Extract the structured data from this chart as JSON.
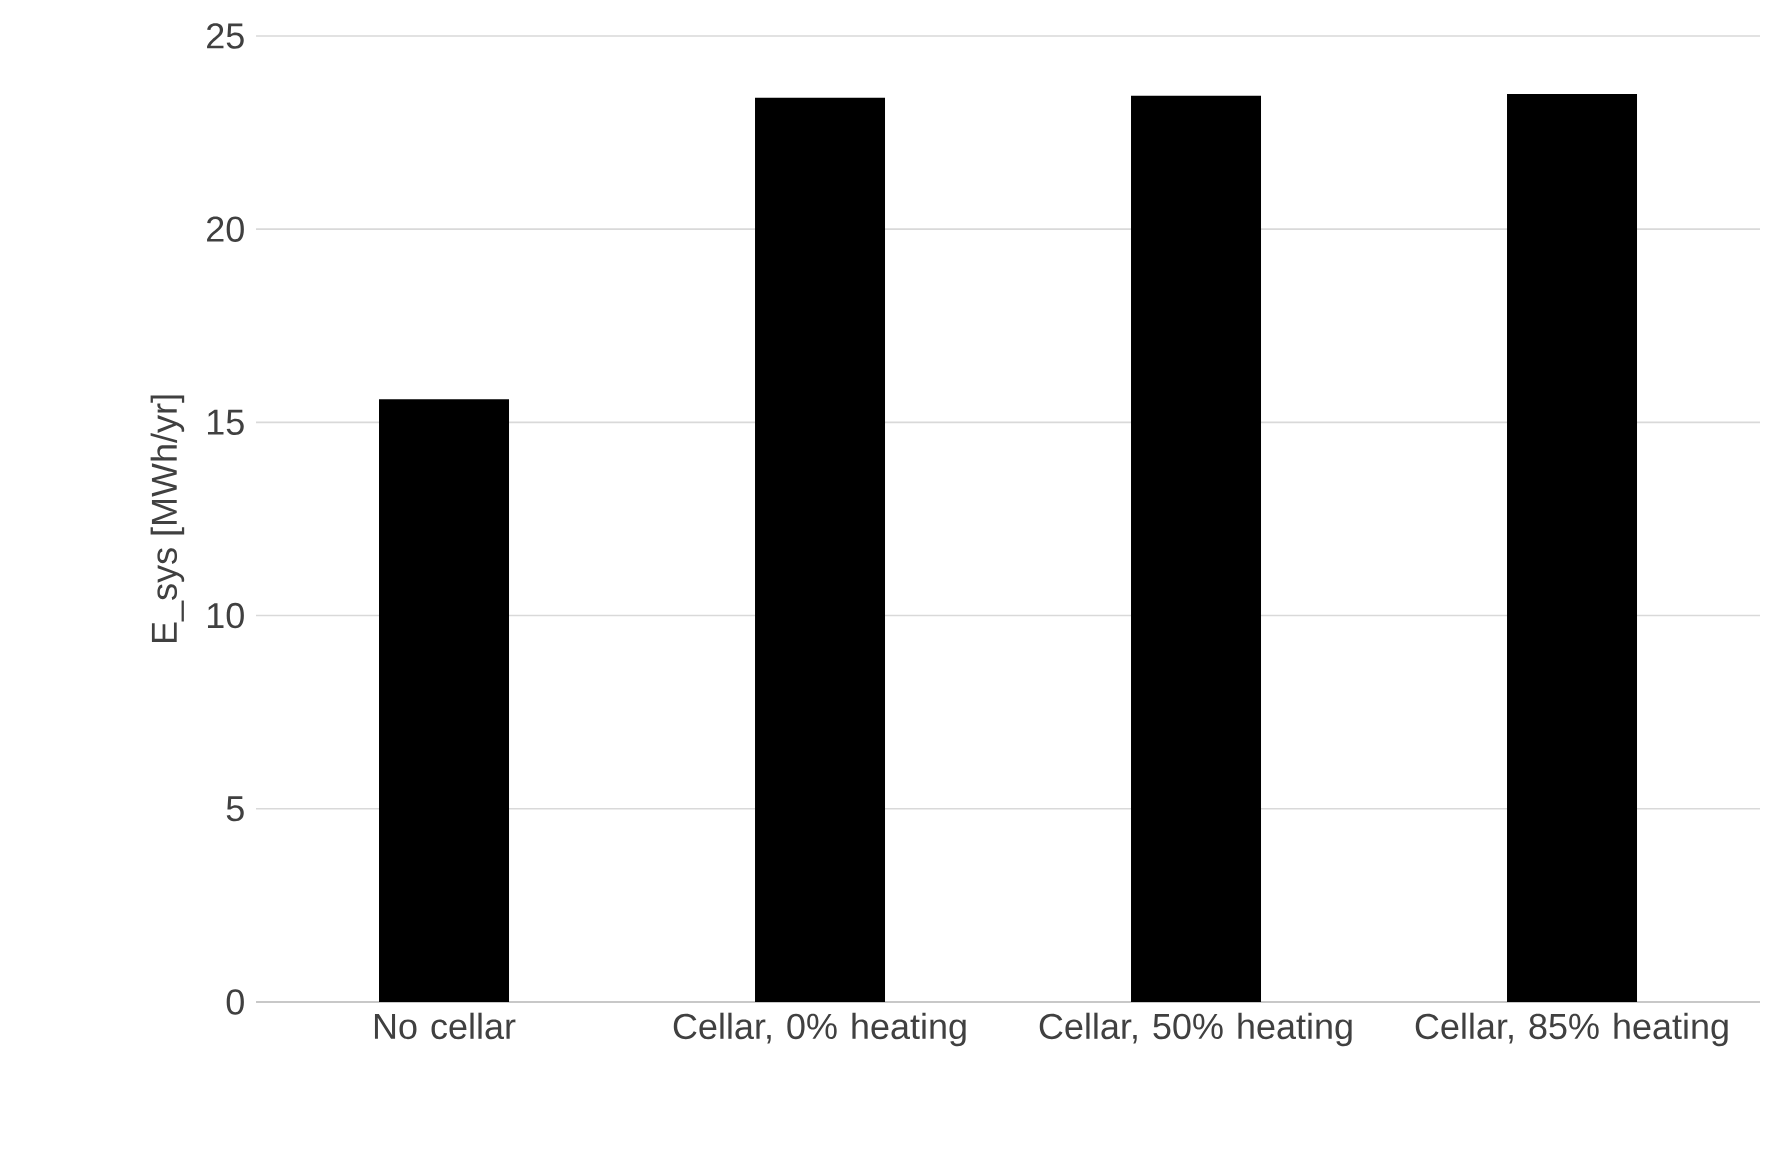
{
  "chart_data": {
    "type": "bar",
    "ylabel": "E_sys [MWh/yr]",
    "categories": [
      "No cellar",
      "Cellar, 0% heating",
      "Cellar, 50% heating",
      "Cellar, 85% heating"
    ],
    "values": [
      15.6,
      23.4,
      23.45,
      23.5
    ],
    "color": "#000000",
    "ylim": [
      0,
      25
    ],
    "yticks": [
      0,
      5,
      10,
      15,
      20,
      25
    ],
    "grid": "y"
  }
}
